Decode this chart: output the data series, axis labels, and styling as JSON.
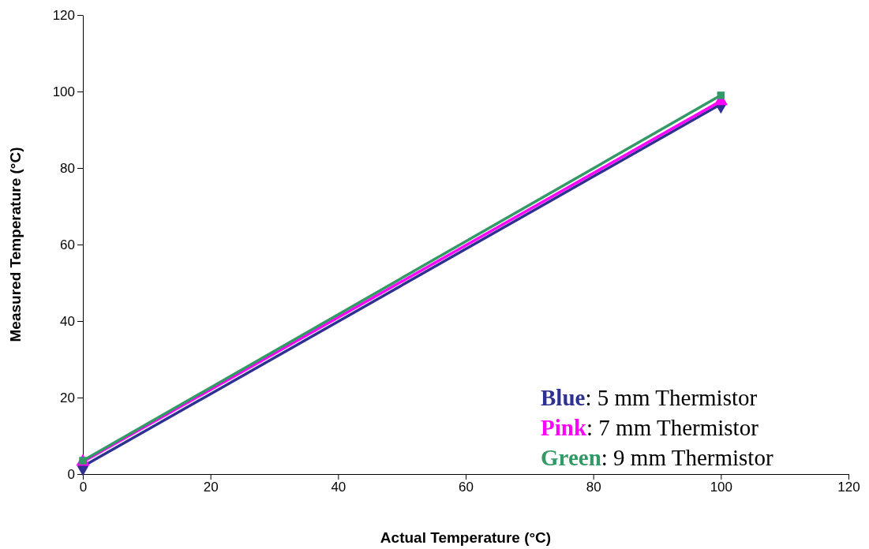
{
  "chart_data": {
    "type": "line",
    "xlabel": "Actual Temperature (°C)",
    "ylabel": "Measured Temperature (°C)",
    "x": [
      0,
      100
    ],
    "xlim": [
      0,
      120
    ],
    "xticks": [
      0,
      20,
      40,
      60,
      80,
      100,
      120
    ],
    "ylim": [
      0,
      120
    ],
    "yticks": [
      0,
      20,
      40,
      60,
      80,
      100,
      120
    ],
    "grid": false,
    "legend": "bottom right",
    "line_style": "solid",
    "series": [
      {
        "name": "Blue: 5 mm Thermistor",
        "color": "#2e3192",
        "values": [
          2,
          96.7
        ],
        "marker": "diamond"
      },
      {
        "name": "Pink: 7 mm Thermistor",
        "color": "#ff00ff",
        "values": [
          3.2,
          97.5
        ],
        "marker": "triangle"
      },
      {
        "name": "Green: 9 mm Thermistor",
        "color": "#339966",
        "values": [
          3.5,
          99
        ],
        "marker": "square"
      }
    ]
  }
}
